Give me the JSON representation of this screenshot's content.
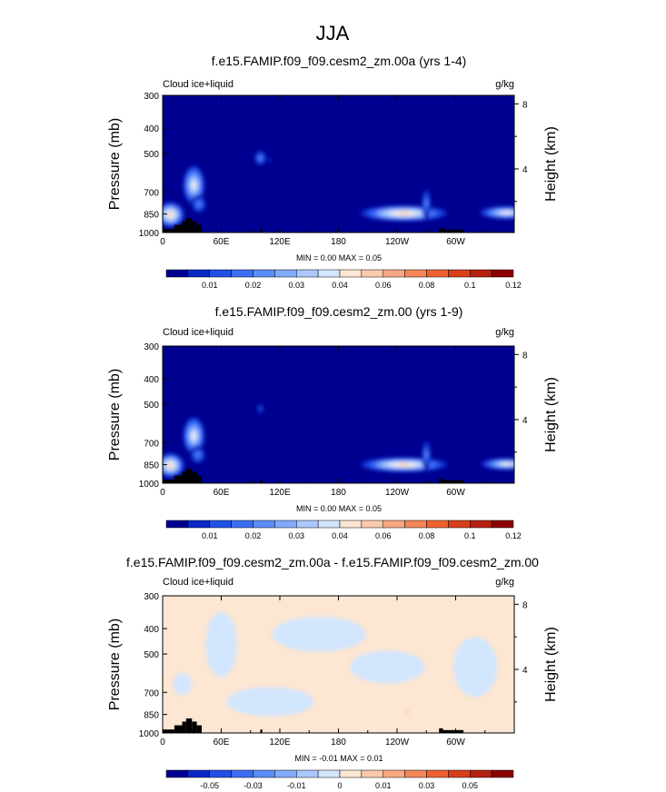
{
  "page_title": "JJA",
  "chart_data": [
    {
      "type": "heatmap",
      "title": "f.e15.FAMIP.f09_f09.cesm2_zm.00a (yrs 1-4)",
      "left_label": "Cloud ice+liquid",
      "units": "g/kg",
      "ylabel": "Pressure (mb)",
      "ylabel_right": "Height (km)",
      "x_ticks": [
        "0",
        "60E",
        "120E",
        "180",
        "120W",
        "60W"
      ],
      "x_tick_values": [
        0,
        60,
        120,
        180,
        240,
        300
      ],
      "xlim": [
        0,
        360
      ],
      "y_ticks": [
        "300",
        "400",
        "500",
        "700",
        "850",
        "1000"
      ],
      "y_tick_values": [
        300,
        400,
        500,
        700,
        850,
        1000
      ],
      "ylim": [
        1000,
        300
      ],
      "right_ticks": [
        "8",
        "4"
      ],
      "right_tick_values": [
        8,
        4
      ],
      "minmax": "MIN =   0.00  MAX =   0.05",
      "colorbar_labels": [
        "0.01",
        "0.02",
        "0.03",
        "0.04",
        "0.06",
        "0.08",
        "0.1",
        "0.12"
      ],
      "colorbar_values": [
        0.005,
        0.01,
        0.015,
        0.02,
        0.025,
        0.03,
        0.035,
        0.04,
        0.05,
        0.06,
        0.07,
        0.08,
        0.09,
        0.1,
        0.11,
        0.12
      ],
      "colorbar_colors": [
        "#000090",
        "#0a28c8",
        "#2050e6",
        "#3c6ef5",
        "#5a8cfa",
        "#82aafc",
        "#aac8fd",
        "#d2e6fe",
        "#fde6d2",
        "#fbcaaa",
        "#f8a882",
        "#f48658",
        "#ee6230",
        "#d8401a",
        "#b42010",
        "#8c0000"
      ],
      "background_value": 0.0,
      "features": [
        {
          "lon": 8,
          "p": 855,
          "wlon": 9,
          "wp": 120,
          "peak": 0.05
        },
        {
          "lon": 32,
          "p": 660,
          "wlon": 7,
          "wp": 140,
          "peak": 0.04
        },
        {
          "lon": 37,
          "p": 780,
          "wlon": 5,
          "wp": 80,
          "peak": 0.02
        },
        {
          "lon": 100,
          "p": 520,
          "wlon": 4,
          "wp": 45,
          "peak": 0.02
        },
        {
          "lon": 110,
          "p": 530,
          "wlon": 2,
          "wp": 25,
          "peak": 0.008
        },
        {
          "lon": 247,
          "p": 845,
          "wlon": 28,
          "wp": 75,
          "peak": 0.05
        },
        {
          "lon": 270,
          "p": 775,
          "wlon": 3,
          "wp": 130,
          "peak": 0.02
        },
        {
          "lon": 352,
          "p": 840,
          "wlon": 17,
          "wp": 60,
          "peak": 0.045
        }
      ]
    },
    {
      "type": "heatmap",
      "title": "f.e15.FAMIP.f09_f09.cesm2_zm.00 (yrs 1-9)",
      "left_label": "Cloud ice+liquid",
      "units": "g/kg",
      "ylabel": "Pressure (mb)",
      "ylabel_right": "Height (km)",
      "x_ticks": [
        "0",
        "60E",
        "120E",
        "180",
        "120W",
        "60W"
      ],
      "x_tick_values": [
        0,
        60,
        120,
        180,
        240,
        300
      ],
      "xlim": [
        0,
        360
      ],
      "y_ticks": [
        "300",
        "400",
        "500",
        "700",
        "850",
        "1000"
      ],
      "y_tick_values": [
        300,
        400,
        500,
        700,
        850,
        1000
      ],
      "ylim": [
        1000,
        300
      ],
      "right_ticks": [
        "8",
        "4"
      ],
      "right_tick_values": [
        8,
        4
      ],
      "minmax": "MIN =   0.00  MAX =   0.05",
      "colorbar_labels": [
        "0.01",
        "0.02",
        "0.03",
        "0.04",
        "0.06",
        "0.08",
        "0.1",
        "0.12"
      ],
      "colorbar_values": [
        0.005,
        0.01,
        0.015,
        0.02,
        0.025,
        0.03,
        0.035,
        0.04,
        0.05,
        0.06,
        0.07,
        0.08,
        0.09,
        0.1,
        0.11,
        0.12
      ],
      "colorbar_colors": [
        "#000090",
        "#0a28c8",
        "#2050e6",
        "#3c6ef5",
        "#5a8cfa",
        "#82aafc",
        "#aac8fd",
        "#d2e6fe",
        "#fde6d2",
        "#fbcaaa",
        "#f8a882",
        "#f48658",
        "#ee6230",
        "#d8401a",
        "#b42010",
        "#8c0000"
      ],
      "background_value": 0.0,
      "features": [
        {
          "lon": 8,
          "p": 855,
          "wlon": 9,
          "wp": 115,
          "peak": 0.05
        },
        {
          "lon": 32,
          "p": 660,
          "wlon": 7,
          "wp": 135,
          "peak": 0.04
        },
        {
          "lon": 36,
          "p": 780,
          "wlon": 5,
          "wp": 80,
          "peak": 0.02
        },
        {
          "lon": 100,
          "p": 520,
          "wlon": 3,
          "wp": 35,
          "peak": 0.012
        },
        {
          "lon": 247,
          "p": 850,
          "wlon": 28,
          "wp": 70,
          "peak": 0.05
        },
        {
          "lon": 270,
          "p": 780,
          "wlon": 3,
          "wp": 130,
          "peak": 0.02
        },
        {
          "lon": 352,
          "p": 845,
          "wlon": 16,
          "wp": 55,
          "peak": 0.045
        }
      ]
    },
    {
      "type": "heatmap",
      "title": "f.e15.FAMIP.f09_f09.cesm2_zm.00a - f.e15.FAMIP.f09_f09.cesm2_zm.00",
      "left_label": "Cloud ice+liquid",
      "units": "g/kg",
      "ylabel": "Pressure (mb)",
      "ylabel_right": "Height (km)",
      "x_ticks": [
        "0",
        "60E",
        "120E",
        "180",
        "120W",
        "60W"
      ],
      "x_tick_values": [
        0,
        60,
        120,
        180,
        240,
        300
      ],
      "xlim": [
        0,
        360
      ],
      "y_ticks": [
        "300",
        "400",
        "500",
        "700",
        "850",
        "1000"
      ],
      "y_tick_values": [
        300,
        400,
        500,
        700,
        850,
        1000
      ],
      "ylim": [
        1000,
        300
      ],
      "right_ticks": [
        "8",
        "4"
      ],
      "right_tick_values": [
        8,
        4
      ],
      "minmax": "MIN =  -0.01  MAX =   0.01",
      "colorbar_labels": [
        "-0.05",
        "-0.03",
        "-0.01",
        "0",
        "0.01",
        "0.03",
        "0.05"
      ],
      "colorbar_values": [
        -0.06,
        -0.05,
        -0.04,
        -0.03,
        -0.02,
        -0.01,
        -0.005,
        0,
        0.005,
        0.01,
        0.02,
        0.03,
        0.04,
        0.05,
        0.06,
        0.07
      ],
      "colorbar_colors": [
        "#000090",
        "#0a28c8",
        "#2050e6",
        "#3c6ef5",
        "#5a8cfa",
        "#82aafc",
        "#aac8fd",
        "#d2e6fe",
        "#fde6d2",
        "#fbcaaa",
        "#f8a882",
        "#f48658",
        "#ee6230",
        "#d8401a",
        "#b42010",
        "#8c0000"
      ],
      "background_value": 0.0,
      "background_color": "#fde6d2",
      "features": [
        {
          "lon": 60,
          "p": 460,
          "wlon": 10,
          "wp": 160,
          "peak": -0.003
        },
        {
          "lon": 160,
          "p": 420,
          "wlon": 30,
          "wp": 80,
          "peak": -0.003
        },
        {
          "lon": 230,
          "p": 560,
          "wlon": 24,
          "wp": 100,
          "peak": -0.003
        },
        {
          "lon": 110,
          "p": 760,
          "wlon": 28,
          "wp": 120,
          "peak": -0.003
        },
        {
          "lon": 320,
          "p": 560,
          "wlon": 14,
          "wp": 180,
          "peak": -0.003
        },
        {
          "lon": 20,
          "p": 650,
          "wlon": 6,
          "wp": 80,
          "peak": -0.003
        },
        {
          "lon": 250,
          "p": 830,
          "wlon": 3,
          "wp": 30,
          "peak": 0.008
        }
      ]
    }
  ],
  "topography": {
    "color": "#000000",
    "blocks": [
      {
        "lon0": 0,
        "lon1": 12,
        "p_top": 970
      },
      {
        "lon0": 12,
        "lon1": 20,
        "p_top": 935
      },
      {
        "lon0": 20,
        "lon1": 24,
        "p_top": 905
      },
      {
        "lon0": 24,
        "lon1": 30,
        "p_top": 880
      },
      {
        "lon0": 30,
        "lon1": 35,
        "p_top": 905
      },
      {
        "lon0": 35,
        "lon1": 40,
        "p_top": 935
      },
      {
        "lon0": 100,
        "lon1": 102,
        "p_top": 970
      },
      {
        "lon0": 283,
        "lon1": 287,
        "p_top": 960
      },
      {
        "lon0": 287,
        "lon1": 308,
        "p_top": 975
      }
    ]
  }
}
